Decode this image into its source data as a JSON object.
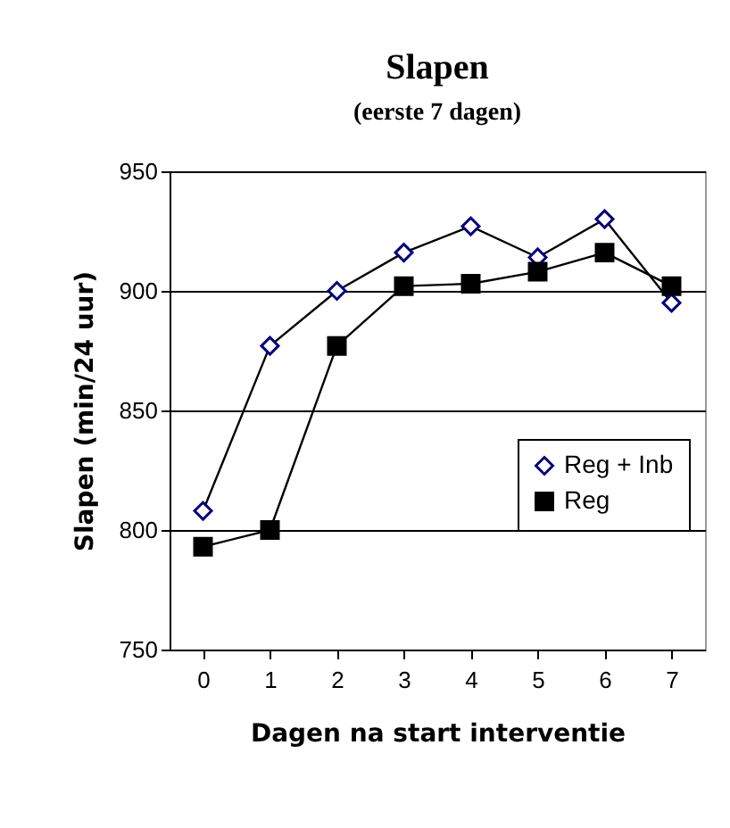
{
  "chart_data": {
    "type": "line",
    "title": "Slapen",
    "subtitle": "(eerste 7 dagen)",
    "xlabel": "Dagen na start interventie",
    "ylabel": "Slapen (min/24 uur)",
    "categories": [
      "0",
      "1",
      "2",
      "3",
      "4",
      "5",
      "6",
      "7"
    ],
    "series": [
      {
        "name": "Reg + Inb",
        "color": "#000080",
        "marker": "diamond",
        "values": [
          808,
          877,
          900,
          916,
          927,
          914,
          930,
          895
        ]
      },
      {
        "name": "Reg",
        "color": "#000000",
        "marker": "square",
        "values": [
          793,
          800,
          877,
          902,
          903,
          908,
          916,
          902
        ]
      }
    ],
    "ylim": [
      750,
      950
    ],
    "yticks": [
      750,
      800,
      850,
      900,
      950
    ],
    "grid": "y",
    "legend": "right"
  }
}
